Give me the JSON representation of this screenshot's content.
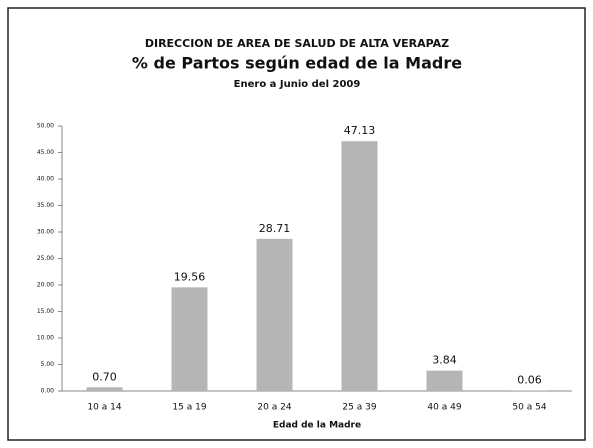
{
  "chart_data": {
    "type": "bar",
    "title": "DIRECCION DE AREA DE SALUD DE ALTA VERAPAZ",
    "subtitle": "% de Partos según edad de la Madre",
    "period": "Enero a Junio del 2009",
    "x_label": "Edad de la Madre",
    "categories": [
      "10 a 14",
      "15 a 19",
      "20 a 24",
      "25 a 39",
      "40 a 49",
      "50 a 54"
    ],
    "values": [
      0.7,
      19.56,
      28.71,
      47.13,
      3.84,
      0.06
    ],
    "value_labels": [
      "0.70",
      "19.56",
      "28.71",
      "47.13",
      "3.84",
      "0.06"
    ],
    "color": "#b5b5b5",
    "ylim": [
      0,
      50
    ],
    "yticks": [
      {
        "value": 0,
        "label": "0.00"
      },
      {
        "value": 5,
        "label": "5.00"
      },
      {
        "value": 10,
        "label": "10.00"
      },
      {
        "value": 15,
        "label": "15.00"
      },
      {
        "value": 20,
        "label": "20.00"
      },
      {
        "value": 25,
        "label": "25.00"
      },
      {
        "value": 30,
        "label": "30.00"
      },
      {
        "value": 35,
        "label": "35.00"
      },
      {
        "value": 40,
        "label": "40.00"
      },
      {
        "value": 45,
        "label": "45.00"
      },
      {
        "value": 50,
        "label": "50.00"
      }
    ],
    "grid": false
  }
}
